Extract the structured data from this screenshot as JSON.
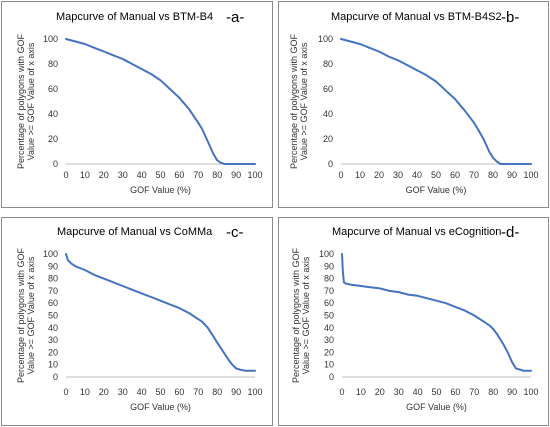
{
  "chart_data": [
    {
      "type": "line",
      "panel_label": "-a-",
      "title": "Mapcurve of Manual vs BTM-B4",
      "xlabel": "GOF Value (%)",
      "ylabel_lines": [
        "Percentage of polygons with GOF",
        "Value >= GOF Value of x axis"
      ],
      "xlim": [
        0,
        100
      ],
      "ylim": [
        0,
        100
      ],
      "xticks": [
        0,
        10,
        20,
        30,
        40,
        50,
        60,
        70,
        80,
        90,
        100
      ],
      "yticks": [
        0,
        20,
        40,
        60,
        80,
        100
      ],
      "grid": false,
      "line_color": "#4472c4",
      "x": [
        0,
        5,
        10,
        15,
        20,
        25,
        30,
        35,
        40,
        45,
        50,
        55,
        60,
        65,
        70,
        72,
        75,
        78,
        80,
        82,
        84,
        86,
        88,
        90,
        95,
        100
      ],
      "y": [
        100,
        98,
        96,
        93,
        90,
        87,
        84,
        80,
        76,
        72,
        67,
        60,
        53,
        44,
        33,
        28,
        18,
        8,
        3,
        1,
        0,
        0,
        0,
        0,
        0,
        0
      ]
    },
    {
      "type": "line",
      "panel_label": "-b-",
      "title": "Mapcurve of Manual vs BTM-B4S2",
      "xlabel": "GOF Value (%)",
      "ylabel_lines": [
        "Percentage of polygons with GOF",
        "Value >= GOF Value of x axis"
      ],
      "xlim": [
        0,
        100
      ],
      "ylim": [
        0,
        100
      ],
      "xticks": [
        0,
        10,
        20,
        30,
        40,
        50,
        60,
        70,
        80,
        90,
        100
      ],
      "yticks": [
        0,
        20,
        40,
        60,
        80,
        100
      ],
      "grid": false,
      "line_color": "#4472c4",
      "x": [
        0,
        5,
        10,
        15,
        20,
        25,
        30,
        35,
        40,
        45,
        50,
        55,
        60,
        65,
        70,
        72,
        75,
        78,
        80,
        82,
        84,
        86,
        88,
        90,
        95,
        100
      ],
      "y": [
        100,
        98,
        96,
        93,
        90,
        86,
        83,
        79,
        75,
        71,
        66,
        59,
        52,
        43,
        33,
        28,
        20,
        10,
        5,
        2,
        0,
        0,
        0,
        0,
        0,
        0
      ]
    },
    {
      "type": "line",
      "panel_label": "-c-",
      "title": "Mapcurve of Manual vs CoMMa",
      "xlabel": "GOF Value (%)",
      "ylabel_lines": [
        "Percentage of polygons with GOF",
        "Value >= GOF Value of x axis"
      ],
      "xlim": [
        0,
        100
      ],
      "ylim": [
        0,
        100
      ],
      "xticks": [
        0,
        10,
        20,
        30,
        40,
        50,
        60,
        70,
        80,
        90,
        100
      ],
      "yticks": [
        0,
        10,
        20,
        30,
        40,
        50,
        60,
        70,
        80,
        90,
        100
      ],
      "grid": false,
      "line_color": "#4472c4",
      "x": [
        0,
        1,
        3,
        5,
        10,
        15,
        20,
        25,
        30,
        35,
        40,
        45,
        50,
        55,
        60,
        65,
        70,
        72,
        75,
        78,
        80,
        83,
        86,
        88,
        90,
        92,
        95,
        98,
        100
      ],
      "y": [
        100,
        95,
        92,
        90,
        87,
        83,
        80,
        77,
        74,
        71,
        68,
        65,
        62,
        59,
        56,
        52,
        47,
        45,
        40,
        33,
        28,
        21,
        14,
        10,
        7,
        6,
        5,
        5,
        5
      ]
    },
    {
      "type": "line",
      "panel_label": "-d-",
      "title": "Mapcurve of Manual vs eCognition",
      "xlabel": "GOF Value (%)",
      "ylabel_lines": [
        "Percentage of polygons with GOF",
        "Value >= GOF Value of x axis"
      ],
      "xlim": [
        0,
        100
      ],
      "ylim": [
        0,
        100
      ],
      "xticks": [
        0,
        10,
        20,
        30,
        40,
        50,
        60,
        70,
        80,
        90,
        100
      ],
      "yticks": [
        0,
        10,
        20,
        30,
        40,
        50,
        60,
        70,
        80,
        90,
        100
      ],
      "grid": false,
      "line_color": "#4472c4",
      "x": [
        0,
        0.5,
        1,
        2,
        5,
        10,
        15,
        20,
        25,
        30,
        35,
        40,
        45,
        50,
        55,
        60,
        65,
        70,
        75,
        78,
        80,
        82,
        84,
        86,
        88,
        90,
        92,
        94,
        96,
        98,
        100
      ],
      "y": [
        100,
        85,
        77,
        76,
        75,
        74,
        73,
        72,
        70,
        69,
        67,
        66,
        64,
        62,
        60,
        57,
        54,
        50,
        45,
        42,
        39,
        35,
        30,
        25,
        19,
        12,
        7,
        6,
        5,
        5,
        5
      ]
    }
  ]
}
